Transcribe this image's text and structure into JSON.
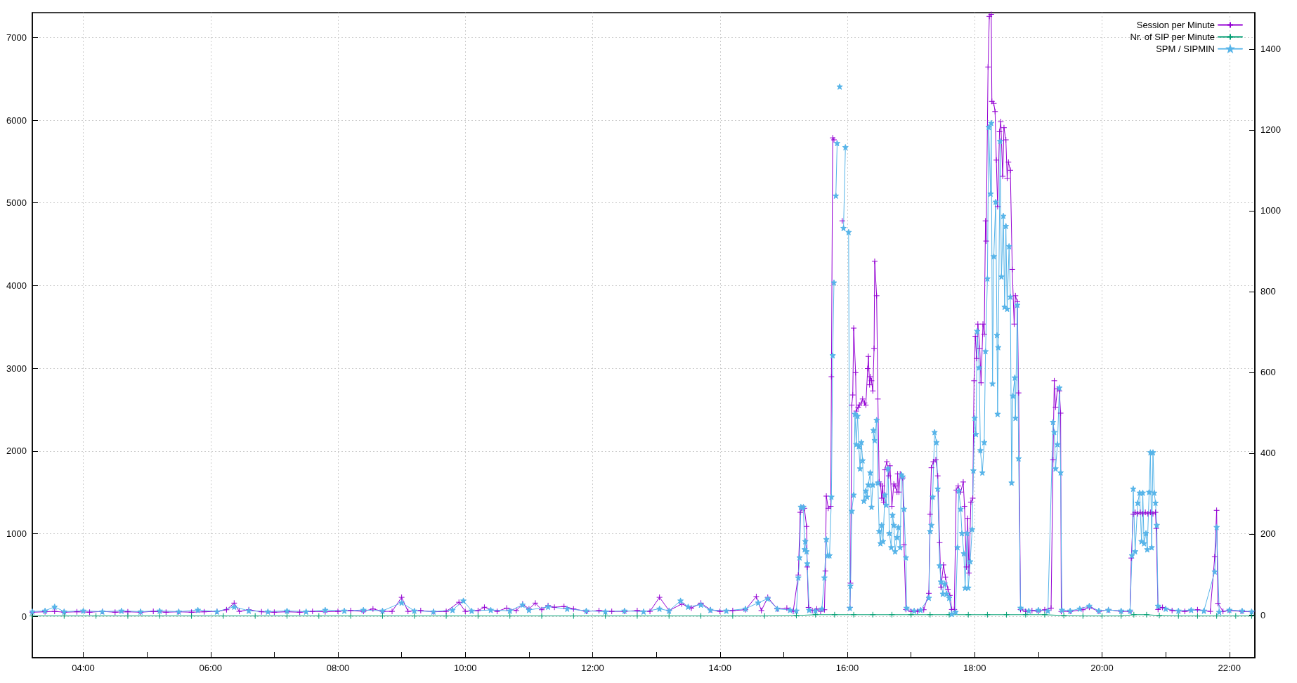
{
  "chart_data": {
    "type": "line",
    "xlim": [
      3.2,
      22.4
    ],
    "xticks": [
      {
        "value": 4,
        "label": "04:00"
      },
      {
        "value": 5,
        "label": null
      },
      {
        "value": 6,
        "label": "06:00"
      },
      {
        "value": 7,
        "label": null
      },
      {
        "value": 8,
        "label": "08:00"
      },
      {
        "value": 9,
        "label": null
      },
      {
        "value": 10,
        "label": "10:00"
      },
      {
        "value": 11,
        "label": null
      },
      {
        "value": 12,
        "label": "12:00"
      },
      {
        "value": 13,
        "label": null
      },
      {
        "value": 14,
        "label": "14:00"
      },
      {
        "value": 15,
        "label": null
      },
      {
        "value": 16,
        "label": "16:00"
      },
      {
        "value": 17,
        "label": null
      },
      {
        "value": 18,
        "label": "18:00"
      },
      {
        "value": 19,
        "label": null
      },
      {
        "value": 20,
        "label": "20:00"
      },
      {
        "value": 21,
        "label": null
      },
      {
        "value": 22,
        "label": "22:00"
      }
    ],
    "ylim": [
      -500,
      7300
    ],
    "yticks": [
      0,
      1000,
      2000,
      3000,
      4000,
      5000,
      6000,
      7000
    ],
    "y2lim": [
      -106,
      1490
    ],
    "y2ticks": [
      0,
      200,
      400,
      600,
      800,
      1000,
      1200,
      1400
    ],
    "grid": true,
    "legend": "top right",
    "line_style": "solid",
    "series": [
      {
        "name": "Session per Minute",
        "color": "#9400d3",
        "marker": "cross",
        "x": [
          3.2,
          3.4,
          3.55,
          3.7,
          3.9,
          4.1,
          4.3,
          4.5,
          4.7,
          4.9,
          5.1,
          5.3,
          5.5,
          5.7,
          5.9,
          6.1,
          6.25,
          6.37,
          6.45,
          6.6,
          6.8,
          7.0,
          7.2,
          7.4,
          7.6,
          7.8,
          8.0,
          8.2,
          8.4,
          8.55,
          8.7,
          8.85,
          9.0,
          9.1,
          9.3,
          9.5,
          9.7,
          9.9,
          10.0,
          10.2,
          10.3,
          10.5,
          10.65,
          10.8,
          10.9,
          11.0,
          11.1,
          11.2,
          11.3,
          11.4,
          11.55,
          11.7,
          11.9,
          12.1,
          12.3,
          12.5,
          12.7,
          12.9,
          13.05,
          13.2,
          13.4,
          13.55,
          13.7,
          13.85,
          14.0,
          14.2,
          14.4,
          14.57,
          14.65,
          14.75,
          14.9,
          15.05,
          15.15,
          15.23,
          15.26,
          15.29,
          15.325,
          15.36,
          15.37,
          15.39,
          15.45,
          15.52,
          15.58,
          15.64,
          15.655,
          15.67,
          15.7,
          15.74,
          15.75,
          15.77,
          15.79,
          15.81,
          15.85,
          15.88,
          15.92,
          15.94,
          15.97,
          16.0,
          16.03,
          16.04,
          16.05,
          16.07,
          16.085,
          16.1,
          16.13,
          16.14,
          16.17,
          16.19,
          16.22,
          16.24,
          16.27,
          16.29,
          16.32,
          16.33,
          16.35,
          16.36,
          16.38,
          16.4,
          16.42,
          16.43,
          16.46,
          16.48,
          16.5,
          16.52,
          16.54,
          16.55,
          16.57,
          16.59,
          16.62,
          16.65,
          16.67,
          16.7,
          16.73,
          16.75,
          16.78,
          16.79,
          16.81,
          16.83,
          16.87,
          16.89,
          16.92,
          17.0,
          17.1,
          17.2,
          17.28,
          17.3,
          17.32,
          17.35,
          17.39,
          17.42,
          17.45,
          17.47,
          17.51,
          17.54,
          17.58,
          17.61,
          17.64,
          17.68,
          17.71,
          17.74,
          17.78,
          17.82,
          17.84,
          17.87,
          17.89,
          17.91,
          17.94,
          17.97,
          17.99,
          18.01,
          18.03,
          18.05,
          18.08,
          18.1,
          18.13,
          18.15,
          18.17,
          18.18,
          18.21,
          18.23,
          18.26,
          18.27,
          18.3,
          18.32,
          18.34,
          18.36,
          18.39,
          18.41,
          18.44,
          18.46,
          18.49,
          18.51,
          18.53,
          18.56,
          18.59,
          18.62,
          18.64,
          18.67,
          18.69,
          18.72,
          18.8,
          18.9,
          19.0,
          19.1,
          19.2,
          19.23,
          19.25,
          19.27,
          19.3,
          19.33,
          19.35,
          19.36,
          19.5,
          19.7,
          19.8,
          19.95,
          20.1,
          20.3,
          20.44,
          20.46,
          20.49,
          20.52,
          20.56,
          20.6,
          20.64,
          20.68,
          20.72,
          20.76,
          20.8,
          20.84,
          20.85,
          20.88,
          20.95,
          21.1,
          21.3,
          21.5,
          21.7,
          21.77,
          21.8,
          21.82,
          21.9,
          22.0,
          22.2,
          22.35
        ],
        "values": [
          50,
          55,
          60,
          50,
          55,
          50,
          60,
          50,
          55,
          50,
          60,
          50,
          55,
          50,
          55,
          60,
          80,
          160,
          60,
          80,
          55,
          50,
          55,
          50,
          60,
          55,
          60,
          70,
          60,
          90,
          60,
          60,
          230,
          60,
          70,
          55,
          60,
          170,
          60,
          70,
          110,
          60,
          100,
          70,
          150,
          90,
          160,
          80,
          130,
          110,
          120,
          90,
          60,
          70,
          60,
          60,
          70,
          60,
          230,
          70,
          150,
          100,
          160,
          80,
          60,
          70,
          80,
          240,
          70,
          230,
          90,
          100,
          60,
          500,
          1258,
          1307,
          1307,
          1087,
          597,
          108,
          70,
          90,
          60,
          80,
          548,
          1454,
          1307,
          1331,
          2898,
          5786,
          5762,
          null,
          null,
          null,
          4782,
          null,
          null,
          null,
          null,
          108,
          401,
          2555,
          2677,
          3485,
          2947,
          2482,
          2530,
          2555,
          2580,
          2628,
          2580,
          2555,
          2996,
          3143,
          2800,
          2898,
          2849,
          2726,
          3241,
          4293,
          3877,
          2628,
          1625,
          1600,
          1429,
          1576,
          1380,
          1772,
          1870,
          1699,
          1821,
          1331,
          1600,
          1576,
          1503,
          1723,
          1503,
          1723,
          1674,
          866,
          83,
          60,
          60,
          80,
          279,
          1234,
          1797,
          1870,
          1894,
          1699,
          891,
          352,
          622,
          475,
          328,
          254,
          83,
          83,
          1527,
          1576,
          1503,
          1625,
          1331,
          597,
          1185,
          524,
          1380,
          1429,
          2849,
          3387,
          3118,
          3534,
          3241,
          2824,
          3534,
          3412,
          4782,
          4538,
          6643,
          7255,
          7279,
          6227,
          6202,
          6104,
          5517,
          4954,
          5860,
          5982,
          5321,
          5909,
          5762,
          5296,
          5492,
          5394,
          4195,
          3534,
          3877,
          3803,
          2702,
          83,
          60,
          70,
          60,
          80,
          100,
          1894,
          2849,
          2530,
          2751,
          2726,
          2457,
          59,
          60,
          80,
          110,
          60,
          80,
          60,
          60,
          705,
          1234,
          1258,
          1240,
          1258,
          1240,
          1258,
          1240,
          1258,
          1240,
          1258,
          1062,
          83,
          108,
          70,
          60,
          80,
          60,
          720,
          1282,
          157,
          60,
          70,
          60,
          55
        ]
      },
      {
        "name": "Nr. of SIP per Minute",
        "color": "#009e73",
        "marker": "cross",
        "x": [
          3.2,
          3.7,
          4.2,
          4.7,
          5.2,
          5.7,
          6.2,
          6.7,
          7.2,
          7.7,
          8.2,
          8.7,
          9.2,
          9.7,
          10.2,
          10.7,
          11.2,
          11.7,
          12.2,
          12.7,
          13.2,
          13.7,
          14.2,
          14.7,
          15.2,
          15.5,
          15.8,
          16.1,
          16.4,
          16.7,
          17.0,
          17.3,
          17.6,
          17.9,
          18.2,
          18.5,
          18.8,
          19.1,
          19.4,
          19.7,
          20.0,
          20.3,
          20.5,
          20.7,
          20.9,
          21.2,
          21.5,
          21.8,
          22.1,
          22.35
        ],
        "values": [
          5,
          5,
          5,
          5,
          5,
          5,
          5,
          5,
          5,
          5,
          5,
          5,
          5,
          5,
          5,
          5,
          5,
          5,
          5,
          5,
          5,
          5,
          5,
          5,
          10,
          20,
          20,
          20,
          20,
          20,
          20,
          20,
          20,
          20,
          20,
          20,
          20,
          20,
          10,
          5,
          5,
          5,
          20,
          20,
          10,
          5,
          5,
          5,
          5,
          5
        ]
      },
      {
        "name": "SPM / SIPMIN",
        "color": "#56b4e9",
        "marker": "star",
        "axis": "y2",
        "x": [
          3.2,
          3.4,
          3.55,
          3.7,
          4.0,
          4.3,
          4.6,
          4.9,
          5.2,
          5.5,
          5.8,
          6.1,
          6.37,
          6.6,
          6.9,
          7.2,
          7.5,
          7.8,
          8.1,
          8.4,
          8.7,
          9.0,
          9.2,
          9.5,
          9.8,
          9.97,
          10.1,
          10.4,
          10.7,
          10.9,
          11.0,
          11.3,
          11.6,
          11.9,
          12.2,
          12.5,
          12.8,
          13.05,
          13.2,
          13.38,
          13.5,
          13.7,
          13.85,
          14.1,
          14.4,
          14.6,
          14.75,
          14.9,
          15.1,
          15.2,
          15.23,
          15.25,
          15.27,
          15.31,
          15.33,
          15.34,
          15.36,
          15.37,
          15.4,
          15.5,
          15.6,
          15.64,
          15.67,
          15.69,
          15.72,
          15.75,
          15.77,
          15.79,
          15.8,
          15.82,
          15.84,
          15.85,
          15.88,
          15.91,
          15.94,
          15.97,
          15.99,
          16.02,
          16.04,
          16.05,
          16.07,
          16.1,
          16.12,
          16.14,
          16.16,
          16.18,
          16.2,
          16.22,
          16.24,
          16.26,
          16.29,
          16.31,
          16.33,
          16.36,
          16.38,
          16.4,
          16.41,
          16.43,
          16.46,
          16.48,
          16.5,
          16.52,
          16.54,
          16.56,
          16.59,
          16.61,
          16.64,
          16.66,
          16.69,
          16.71,
          16.73,
          16.75,
          16.78,
          16.8,
          16.83,
          16.85,
          16.87,
          16.89,
          16.92,
          16.93,
          17.05,
          17.15,
          17.28,
          17.3,
          17.32,
          17.34,
          17.37,
          17.4,
          17.42,
          17.45,
          17.47,
          17.5,
          17.53,
          17.56,
          17.6,
          17.64,
          17.7,
          17.73,
          17.75,
          17.78,
          17.8,
          17.83,
          17.85,
          17.88,
          17.9,
          17.93,
          17.96,
          17.98,
          18.0,
          18.02,
          18.04,
          18.07,
          18.09,
          18.12,
          18.15,
          18.17,
          18.2,
          18.22,
          18.25,
          18.26,
          18.28,
          18.3,
          18.33,
          18.35,
          18.36,
          18.37,
          18.4,
          18.42,
          18.45,
          18.47,
          18.49,
          18.51,
          18.54,
          18.56,
          18.58,
          18.6,
          18.63,
          18.64,
          18.67,
          18.69,
          18.72,
          18.85,
          19.0,
          19.15,
          19.23,
          19.25,
          19.27,
          19.3,
          19.33,
          19.35,
          19.37,
          19.5,
          19.65,
          19.8,
          19.95,
          20.1,
          20.3,
          20.44,
          20.47,
          20.49,
          20.52,
          20.56,
          20.59,
          20.62,
          20.64,
          20.66,
          20.69,
          20.71,
          20.74,
          20.76,
          20.78,
          20.8,
          20.82,
          20.84,
          20.86,
          20.88,
          21.0,
          21.2,
          21.4,
          21.6,
          21.77,
          21.8,
          21.84,
          22.0,
          22.2,
          22.35
        ],
        "values": [
          8,
          10,
          20,
          8,
          10,
          8,
          10,
          8,
          10,
          8,
          12,
          8,
          20,
          10,
          8,
          10,
          8,
          12,
          10,
          12,
          10,
          30,
          10,
          8,
          12,
          35,
          10,
          12,
          10,
          25,
          12,
          20,
          15,
          10,
          8,
          10,
          8,
          15,
          10,
          35,
          20,
          25,
          12,
          10,
          15,
          30,
          40,
          15,
          12,
          10,
          92,
          142,
          267,
          267,
          162,
          182,
          157,
          127,
          12,
          10,
          15,
          92,
          187,
          147,
          147,
          292,
          642,
          822,
          null,
          1037,
          1167,
          null,
          1307,
          null,
          957,
          1157,
          null,
          947,
          17,
          72,
          257,
          297,
          497,
          422,
          492,
          417,
          362,
          427,
          382,
          282,
          307,
          292,
          322,
          352,
          267,
          322,
          457,
          432,
          482,
          327,
          207,
          177,
          222,
          182,
          297,
          272,
          362,
          202,
          167,
          247,
          222,
          157,
          192,
          217,
          167,
          347,
          342,
          262,
          142,
          17,
          10,
          12,
          42,
          207,
          222,
          292,
          452,
          427,
          312,
          122,
          82,
          52,
          77,
          52,
          42,
          2,
          7,
          167,
          307,
          262,
          202,
          152,
          67,
          202,
          67,
          132,
          212,
          357,
          487,
          447,
          702,
          612,
          407,
          352,
          427,
          652,
          832,
          1207,
          1042,
          1217,
          572,
          887,
          1022,
          692,
          497,
          662,
          1172,
          837,
          987,
          762,
          962,
          757,
          912,
          787,
          327,
          542,
          587,
          487,
          767,
          387,
          17,
          10,
          12,
          10,
          477,
          452,
          362,
          422,
          562,
          352,
          12,
          10,
          15,
          22,
          10,
          12,
          10,
          10,
          147,
          312,
          157,
          277,
          302,
          182,
          302,
          177,
          202,
          162,
          304,
          402,
          167,
          402,
          302,
          277,
          222,
          22,
          15,
          10,
          12,
          10,
          107,
          217,
          7,
          12,
          10,
          8
        ]
      }
    ]
  }
}
